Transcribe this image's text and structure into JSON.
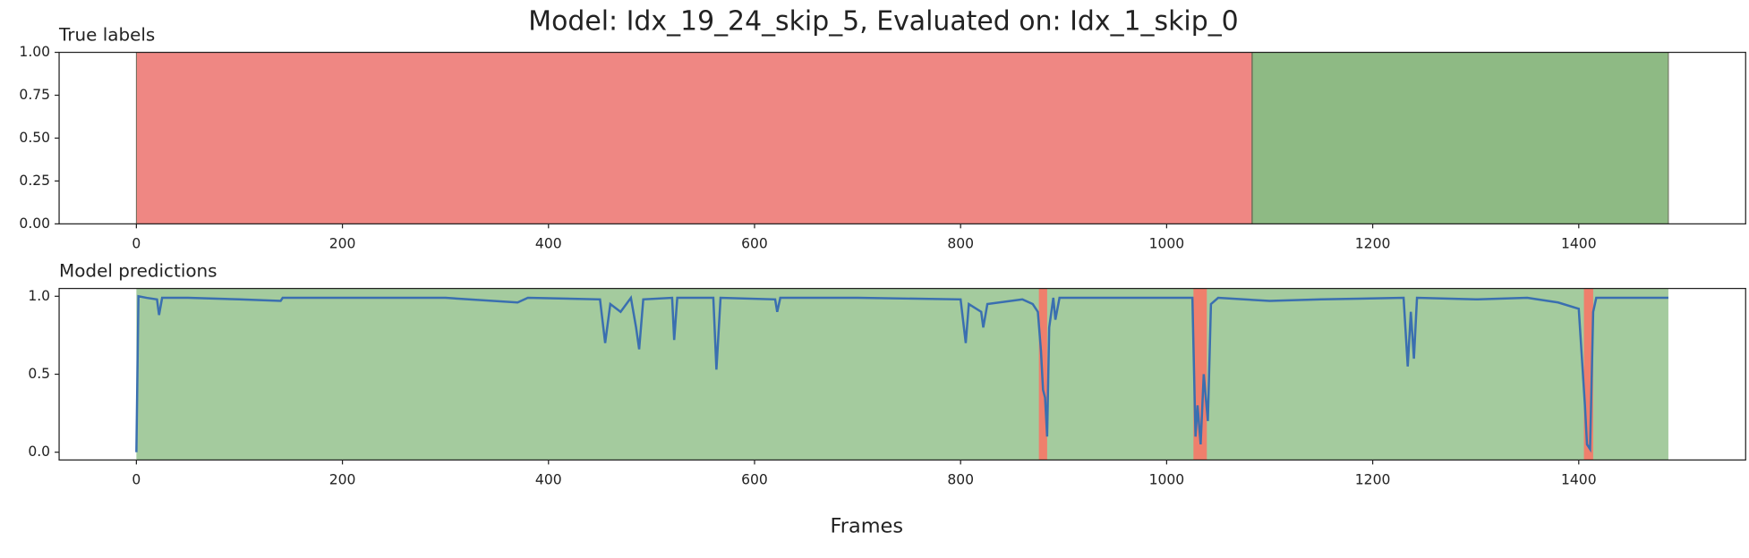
{
  "chart_data": [
    {
      "type": "span",
      "suptitle": "Model: Idx_19_24_skip_5, Evaluated on: Idx_1_skip_0",
      "title": "True labels",
      "xlim": [
        -75,
        1562
      ],
      "xticks": [
        0,
        200,
        400,
        600,
        800,
        1000,
        1200,
        1400
      ],
      "ylim": [
        0,
        1
      ],
      "yticks": [
        {
          "value": 0,
          "label": "0.00"
        },
        {
          "value": 0.25,
          "label": "0.25"
        },
        {
          "value": 0.5,
          "label": "0.50"
        },
        {
          "value": 0.75,
          "label": "0.75"
        },
        {
          "value": 1,
          "label": "1.00"
        }
      ],
      "spans": [
        {
          "start": 0,
          "end": 1083,
          "color": "#ef8783"
        },
        {
          "start": 1083,
          "end": 1487,
          "color": "#8eba84"
        }
      ]
    },
    {
      "type": "line",
      "title": "Model predictions",
      "xlabel": "Frames",
      "xlim": [
        -75,
        1562
      ],
      "xticks": [
        0,
        200,
        400,
        600,
        800,
        1000,
        1200,
        1400
      ],
      "ylim": [
        -0.05,
        1.05
      ],
      "yticks": [
        {
          "value": 0,
          "label": "0.0"
        },
        {
          "value": 0.5,
          "label": "0.5"
        },
        {
          "value": 1,
          "label": "1.0"
        }
      ],
      "spans": [
        {
          "start": 0,
          "end": 1487,
          "color": "#a4cb9e"
        },
        {
          "start": 876,
          "end": 884,
          "color": "#ef7f6c"
        },
        {
          "start": 1026,
          "end": 1039,
          "color": "#ef7f6c"
        },
        {
          "start": 1405,
          "end": 1414,
          "color": "#ef7f6c"
        }
      ],
      "x": [
        0,
        2,
        10,
        20,
        22,
        25,
        50,
        100,
        140,
        142,
        200,
        300,
        370,
        380,
        450,
        455,
        460,
        470,
        480,
        485,
        488,
        492,
        520,
        522,
        525,
        560,
        563,
        567,
        620,
        622,
        625,
        700,
        800,
        805,
        808,
        820,
        822,
        826,
        860,
        870,
        875,
        878,
        880,
        882,
        884,
        886,
        890,
        892,
        896,
        1000,
        1025,
        1028,
        1030,
        1033,
        1036,
        1040,
        1043,
        1050,
        1100,
        1150,
        1230,
        1234,
        1237,
        1240,
        1243,
        1300,
        1350,
        1380,
        1400,
        1406,
        1408,
        1411,
        1414,
        1417,
        1487
      ],
      "series": [
        {
          "color": "#3a6fb0",
          "values": [
            0.0,
            1.0,
            0.99,
            0.98,
            0.88,
            0.99,
            0.99,
            0.98,
            0.97,
            0.99,
            0.99,
            0.99,
            0.96,
            0.99,
            0.98,
            0.7,
            0.95,
            0.9,
            0.99,
            0.8,
            0.66,
            0.98,
            0.99,
            0.72,
            0.99,
            0.99,
            0.53,
            0.99,
            0.98,
            0.9,
            0.99,
            0.99,
            0.98,
            0.7,
            0.95,
            0.9,
            0.8,
            0.95,
            0.98,
            0.95,
            0.9,
            0.65,
            0.4,
            0.35,
            0.1,
            0.8,
            0.99,
            0.85,
            0.99,
            0.99,
            0.99,
            0.1,
            0.3,
            0.05,
            0.5,
            0.2,
            0.95,
            0.99,
            0.97,
            0.98,
            0.99,
            0.55,
            0.9,
            0.6,
            0.99,
            0.98,
            0.99,
            0.96,
            0.92,
            0.3,
            0.05,
            0.02,
            0.9,
            0.99,
            0.99
          ]
        }
      ]
    }
  ]
}
